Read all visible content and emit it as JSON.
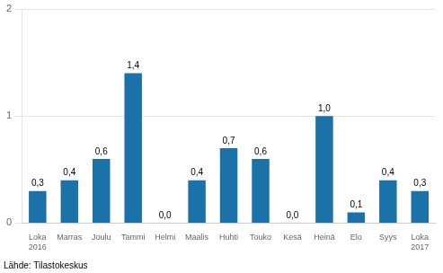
{
  "chart_data": {
    "type": "bar",
    "categories": [
      "Loka\n2016",
      "Marras",
      "Joulu",
      "Tammi",
      "Helmi",
      "Maalis",
      "Huhti",
      "Touko",
      "Kesä",
      "Heinä",
      "Elo",
      "Syys",
      "Loka\n2017"
    ],
    "values": [
      0.3,
      0.4,
      0.6,
      1.4,
      0.0,
      0.4,
      0.7,
      0.6,
      0.0,
      1.0,
      0.1,
      0.4,
      0.3
    ],
    "value_labels": [
      "0,3",
      "0,4",
      "0,6",
      "1,4",
      "0,0",
      "0,4",
      "0,7",
      "0,6",
      "0,0",
      "1,0",
      "0,1",
      "0,4",
      "0,3"
    ],
    "data_labels": true,
    "color": "#1a72a8",
    "ylim": [
      0,
      2
    ],
    "yticks": [
      0,
      1,
      2
    ],
    "grid": true,
    "annotations": [
      "Lähde: Tilastokeskus"
    ]
  }
}
